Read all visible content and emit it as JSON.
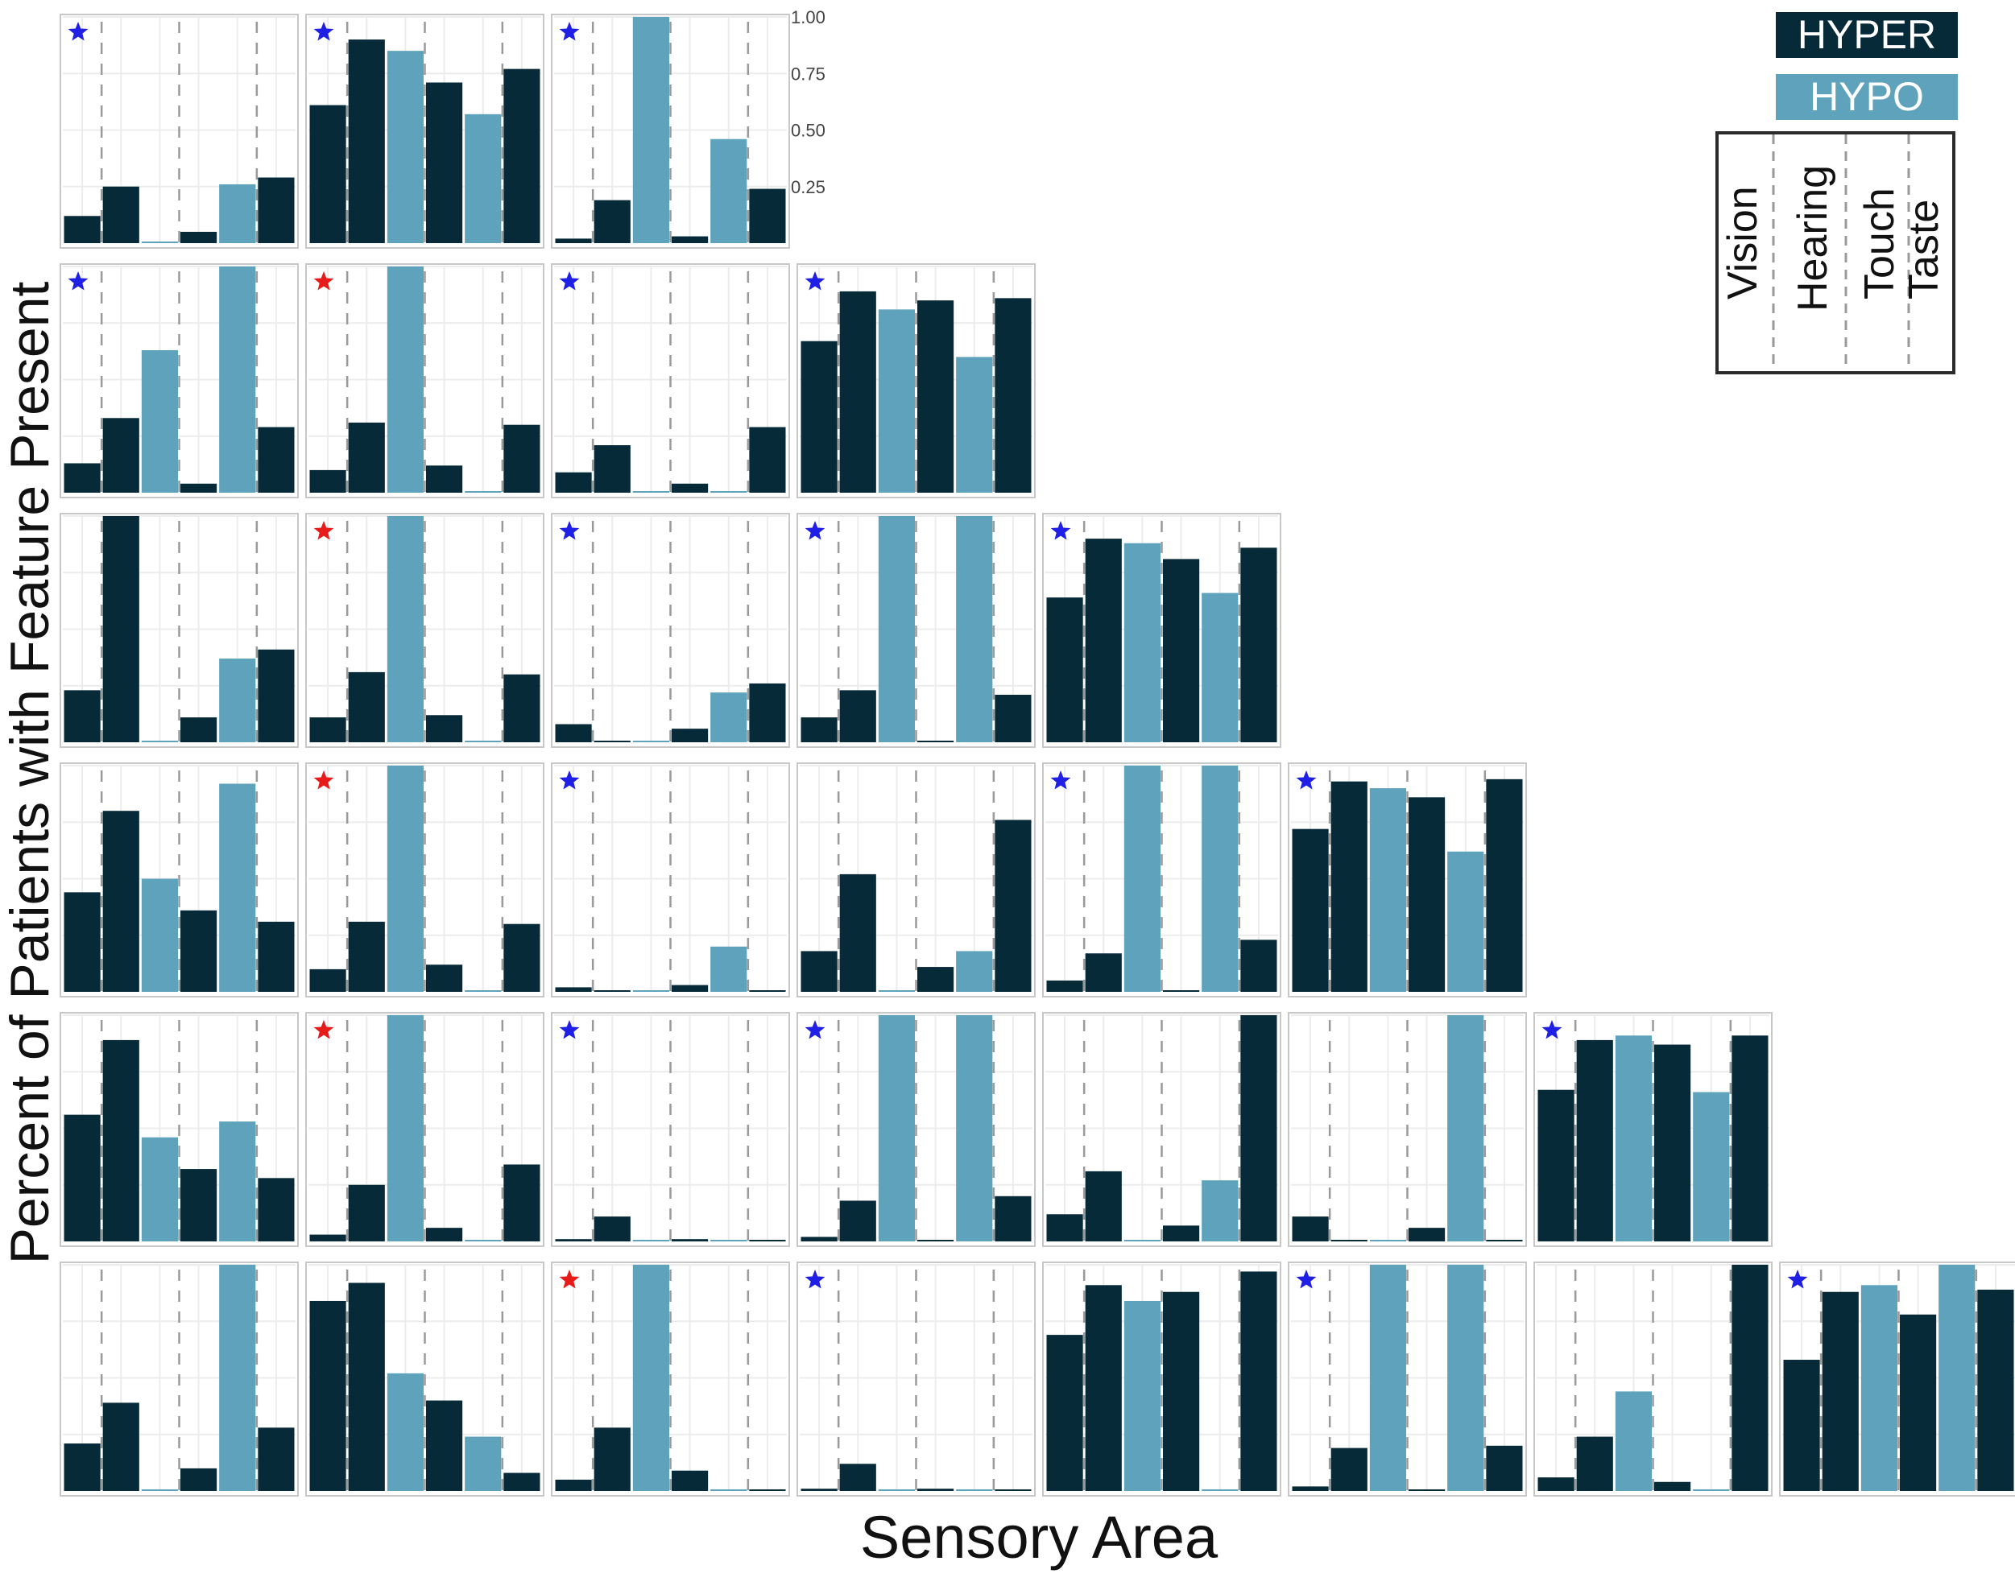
{
  "colors": {
    "hyper": "#062a38",
    "hypo": "#5ea2bc",
    "star_blue": "#1f1fe6",
    "star_red": "#e81b1b"
  },
  "axes": {
    "xlabel": "Sensory Area",
    "ylabel": "Percent of Patients with Feature Present",
    "yticks": [
      "0.25",
      "0.50",
      "0.75",
      "1.00"
    ]
  },
  "legend": {
    "hyper_label": "HYPER",
    "hypo_label": "HYPO",
    "areas": [
      "Vision",
      "Hearing",
      "Touch",
      "Taste"
    ]
  },
  "chart_data": {
    "type": "bar",
    "layout": "lower-triangular grid of small bar panels, 6 rows",
    "bar_order": [
      "hyper",
      "hyper",
      "hypo",
      "hyper",
      "hypo",
      "hyper"
    ],
    "ylim": [
      0,
      1
    ],
    "grid": true,
    "legend_position": "top-right",
    "rows": [
      {
        "panels": [
          {
            "star": "blue",
            "values": [
              0.12,
              0.25,
              0.0,
              0.05,
              0.26,
              0.29
            ]
          },
          {
            "star": "blue",
            "values": [
              0.61,
              0.9,
              0.85,
              0.71,
              0.57,
              0.77
            ]
          },
          {
            "star": "blue",
            "values": [
              0.02,
              0.19,
              1.0,
              0.03,
              0.46,
              0.24
            ]
          }
        ]
      },
      {
        "panels": [
          {
            "star": "blue",
            "values": [
              0.13,
              0.33,
              0.63,
              0.04,
              1.0,
              0.29
            ]
          },
          {
            "star": "red",
            "values": [
              0.1,
              0.31,
              1.0,
              0.12,
              0.0,
              0.3
            ]
          },
          {
            "star": "blue",
            "values": [
              0.09,
              0.21,
              0.0,
              0.04,
              0.0,
              0.29
            ]
          },
          {
            "star": "blue",
            "values": [
              0.67,
              0.89,
              0.81,
              0.85,
              0.6,
              0.86
            ]
          }
        ]
      },
      {
        "panels": [
          {
            "star": "none",
            "values": [
              0.23,
              1.0,
              0.0,
              0.11,
              0.37,
              0.41
            ]
          },
          {
            "star": "red",
            "values": [
              0.11,
              0.31,
              1.0,
              0.12,
              0.0,
              0.3
            ]
          },
          {
            "star": "blue",
            "values": [
              0.08,
              0.0,
              0.0,
              0.06,
              0.22,
              0.26
            ]
          },
          {
            "star": "blue",
            "values": [
              0.11,
              0.23,
              1.0,
              0.0,
              1.0,
              0.21
            ]
          },
          {
            "star": "blue",
            "values": [
              0.64,
              0.9,
              0.88,
              0.81,
              0.66,
              0.86
            ]
          }
        ]
      },
      {
        "panels": [
          {
            "star": "none",
            "values": [
              0.44,
              0.8,
              0.5,
              0.36,
              0.92,
              0.31
            ]
          },
          {
            "star": "red",
            "values": [
              0.1,
              0.31,
              1.0,
              0.12,
              0.0,
              0.3
            ]
          },
          {
            "star": "blue",
            "values": [
              0.02,
              0.0,
              0.0,
              0.03,
              0.2,
              0.0
            ]
          },
          {
            "star": "none",
            "values": [
              0.18,
              0.52,
              0.0,
              0.11,
              0.18,
              0.76
            ]
          },
          {
            "star": "blue",
            "values": [
              0.05,
              0.17,
              1.0,
              0.0,
              1.0,
              0.23
            ]
          },
          {
            "star": "blue",
            "values": [
              0.72,
              0.93,
              0.9,
              0.86,
              0.62,
              0.94
            ]
          }
        ]
      },
      {
        "panels": [
          {
            "star": "none",
            "values": [
              0.56,
              0.89,
              0.46,
              0.32,
              0.53,
              0.28
            ]
          },
          {
            "star": "red",
            "values": [
              0.03,
              0.25,
              1.0,
              0.06,
              0.0,
              0.34
            ]
          },
          {
            "star": "blue",
            "values": [
              0.01,
              0.11,
              0.0,
              0.01,
              0.0,
              0.0
            ]
          },
          {
            "star": "blue",
            "values": [
              0.02,
              0.18,
              1.0,
              0.0,
              1.0,
              0.2
            ]
          },
          {
            "star": "none",
            "values": [
              0.12,
              0.31,
              0.0,
              0.07,
              0.27,
              1.0
            ]
          },
          {
            "star": "none",
            "values": [
              0.11,
              0.0,
              0.0,
              0.06,
              1.0,
              0.0
            ]
          },
          {
            "star": "blue",
            "values": [
              0.67,
              0.89,
              0.91,
              0.87,
              0.66,
              0.91
            ]
          }
        ]
      },
      {
        "panels": [
          {
            "star": "none",
            "values": [
              0.21,
              0.39,
              0.0,
              0.1,
              1.0,
              0.28
            ]
          },
          {
            "star": "none",
            "values": [
              0.84,
              0.92,
              0.52,
              0.4,
              0.24,
              0.08
            ]
          },
          {
            "star": "red",
            "values": [
              0.05,
              0.28,
              1.0,
              0.09,
              0.0,
              0.0
            ]
          },
          {
            "star": "blue",
            "values": [
              0.01,
              0.12,
              0.0,
              0.01,
              0.0,
              0.0
            ]
          },
          {
            "star": "none",
            "values": [
              0.69,
              0.91,
              0.84,
              0.88,
              0.0,
              0.97
            ]
          },
          {
            "star": "blue",
            "values": [
              0.02,
              0.19,
              1.0,
              0.0,
              1.0,
              0.2
            ]
          },
          {
            "star": "none",
            "values": [
              0.06,
              0.24,
              0.44,
              0.04,
              0.0,
              1.0
            ]
          },
          {
            "star": "blue",
            "values": [
              0.58,
              0.88,
              0.91,
              0.78,
              1.0,
              0.89
            ]
          }
        ]
      }
    ]
  }
}
